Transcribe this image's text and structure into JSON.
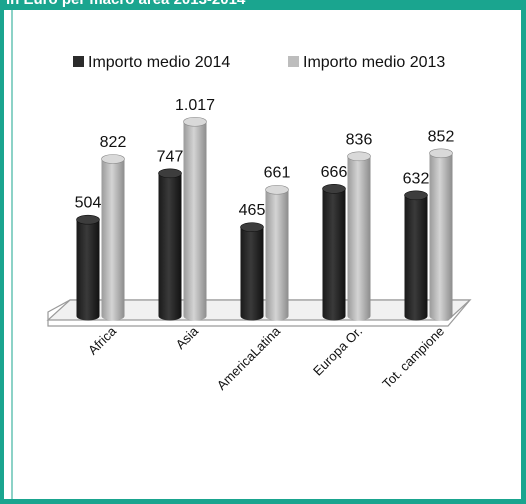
{
  "header": {
    "text": "in Euro per macro area 2013-2014",
    "color": "#1aa58f"
  },
  "colors": {
    "series_2014": "#2b2b2b",
    "series_2013": "#bdbdbd",
    "frame": "#1aa58f"
  },
  "chart_data": {
    "type": "bar",
    "style": "3d-cylinder",
    "title": "",
    "xlabel": "",
    "ylabel": "",
    "categories": [
      "Africa",
      "Asia",
      "AmericaLatina",
      "Europa Or.",
      "Tot. campione"
    ],
    "series": [
      {
        "name": "Importo medio 2014",
        "values": [
          504,
          747,
          465,
          666,
          632
        ],
        "labels": [
          "504",
          "747",
          "465",
          "666",
          "632"
        ]
      },
      {
        "name": "Importo medio 2013",
        "values": [
          822,
          1017,
          661,
          836,
          852
        ],
        "labels": [
          "822",
          "1.017",
          "661",
          "836",
          "852"
        ]
      }
    ],
    "ylim": [
      0,
      1100
    ],
    "grid": false,
    "legend": "top"
  }
}
